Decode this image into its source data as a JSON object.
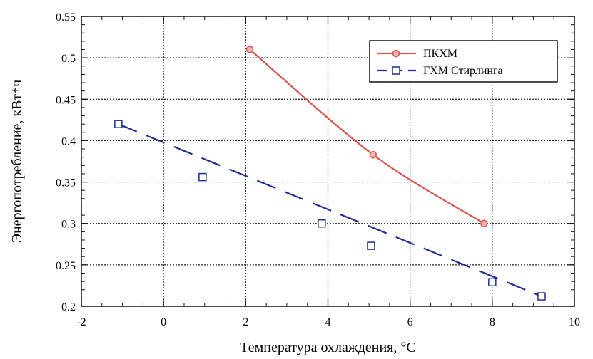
{
  "chart_data": {
    "type": "line",
    "title": "",
    "xlabel": "Температура охлаждения, °C",
    "ylabel": "Энергопотребление, кВт*ч",
    "xlim": [
      -2,
      10
    ],
    "ylim": [
      0.2,
      0.55
    ],
    "xticks": [
      -2,
      0,
      2,
      4,
      6,
      8,
      10
    ],
    "yticks": [
      0.2,
      0.25,
      0.3,
      0.35,
      0.4,
      0.45,
      0.5,
      0.55
    ],
    "xtick_labels": [
      "-2",
      "0",
      "2",
      "4",
      "6",
      "8",
      "10"
    ],
    "ytick_labels": [
      "0.2",
      "0.25",
      "0.3",
      "0.35",
      "0.4",
      "0.45",
      "0.5",
      "0.55"
    ],
    "grid": true,
    "legend_position": "top-right",
    "series": [
      {
        "name": "ПКХМ",
        "color": "#d9534f",
        "line_style": "solid",
        "marker": "circle",
        "x": [
          2.1,
          5.1,
          7.8
        ],
        "y": [
          0.51,
          0.383,
          0.3
        ]
      },
      {
        "name": "ГХМ Стирлинга",
        "color": "#1f2f8f",
        "line_style": "dashed",
        "marker": "square",
        "x": [
          -1.1,
          0.95,
          3.85,
          5.05,
          8.0,
          9.2
        ],
        "y": [
          0.42,
          0.356,
          0.3,
          0.273,
          0.229,
          0.212
        ]
      }
    ]
  }
}
